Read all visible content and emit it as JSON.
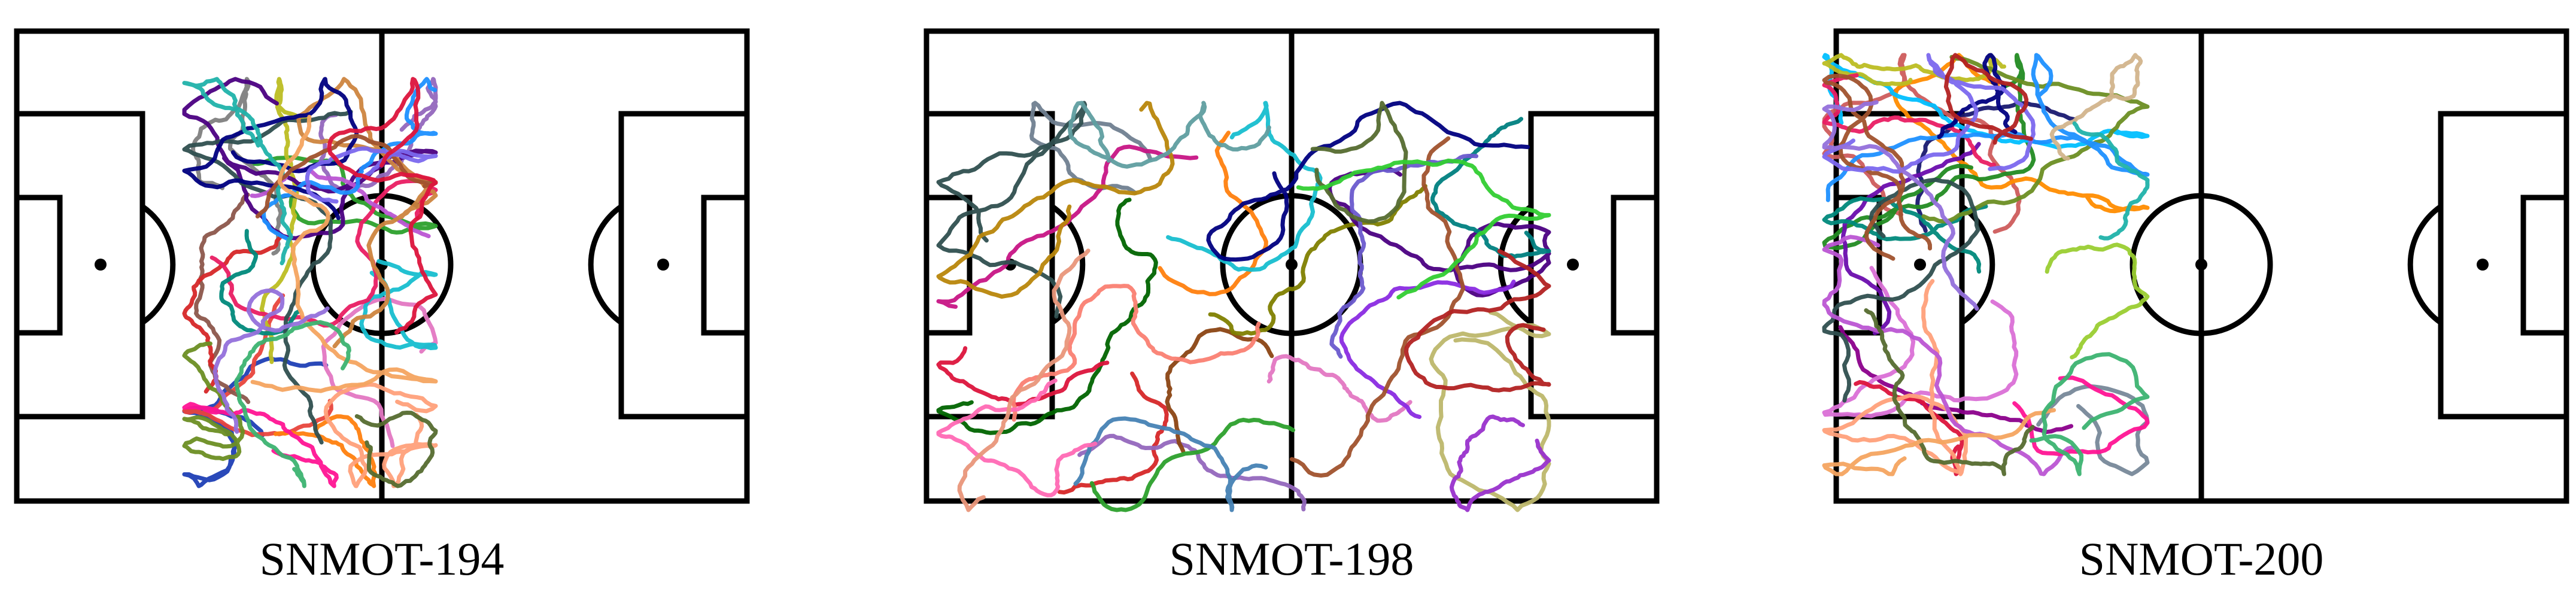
{
  "panels": [
    {
      "caption": "SNMOT-194",
      "colors": [
        "#1f3fb5",
        "#e8453c",
        "#2ca02c",
        "#9467bd",
        "#ff7f0e",
        "#8c564b",
        "#e377c2",
        "#17becf",
        "#bcbd22",
        "#7f7f7f",
        "#d62728",
        "#4b0082",
        "#e91e63",
        "#00897b",
        "#6b8e23",
        "#ffa07a",
        "#2f4f4f",
        "#ba55d3",
        "#1e90ff",
        "#cd853f",
        "#000080",
        "#ff1493",
        "#20b2aa",
        "#a0522d",
        "#7b68ee",
        "#556b2f",
        "#f4a460",
        "#9370db",
        "#dc143c",
        "#3cb371"
      ]
    },
    {
      "caption": "SNMOT-198",
      "colors": [
        "#006400",
        "#d62728",
        "#9467bd",
        "#8b4513",
        "#ff7f0e",
        "#2ca02c",
        "#e377c2",
        "#17becf",
        "#808000",
        "#708090",
        "#dc143c",
        "#4b0082",
        "#c71585",
        "#008080",
        "#bdb76b",
        "#fa8072",
        "#2f4f4f",
        "#8a2be2",
        "#4682b4",
        "#b8860b",
        "#000080",
        "#ff69b4",
        "#5f9ea0",
        "#a0522d",
        "#6a5acd",
        "#556b2f",
        "#e9967a",
        "#9932cc",
        "#b22222",
        "#32cd32"
      ]
    },
    {
      "caption": "SNMOT-200",
      "colors": [
        "#191970",
        "#cd5c5c",
        "#9acd32",
        "#8b008b",
        "#ff8c00",
        "#228b22",
        "#da70d6",
        "#00bfff",
        "#bcbd22",
        "#778899",
        "#dc143c",
        "#6a0dad",
        "#e91e63",
        "#00897b",
        "#6b8e23",
        "#ffa07a",
        "#2f4f4f",
        "#ba55d3",
        "#1e90ff",
        "#d2b48c",
        "#000080",
        "#ff1493",
        "#20b2aa",
        "#a0522d",
        "#7b68ee",
        "#556b2f",
        "#f4a460",
        "#9370db",
        "#b22222",
        "#3cb371"
      ]
    }
  ]
}
